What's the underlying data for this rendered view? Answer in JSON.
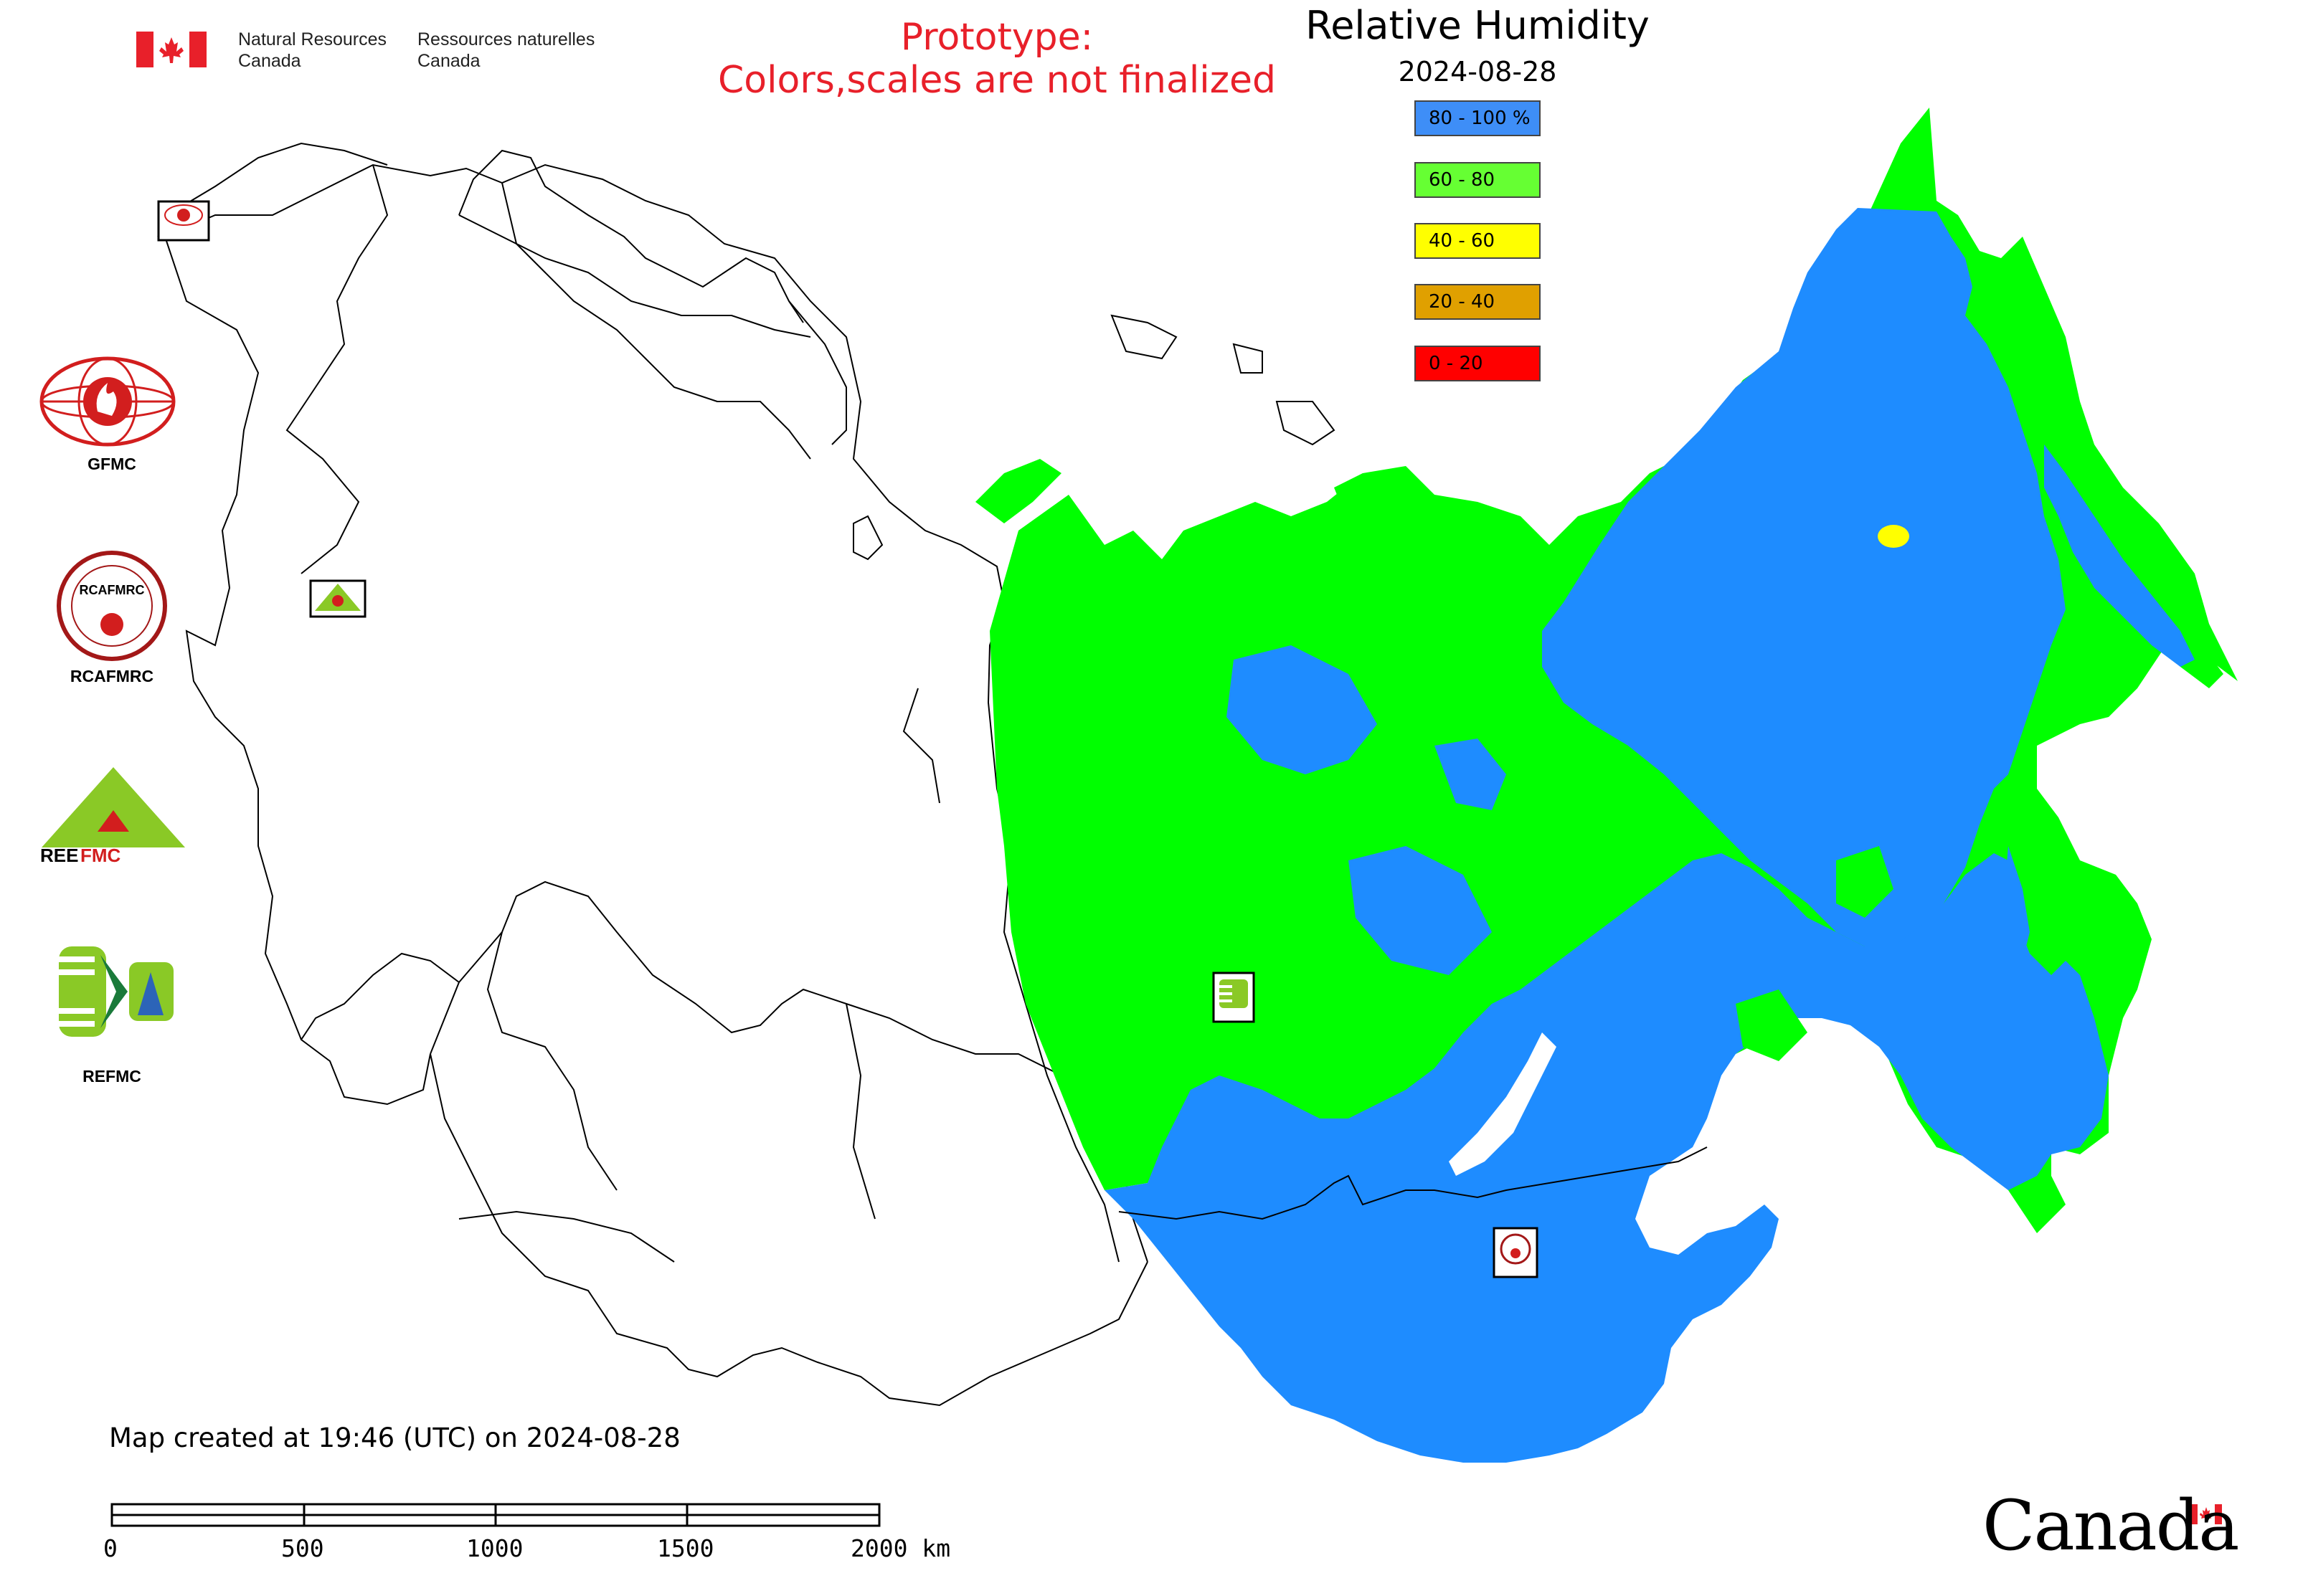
{
  "header": {
    "dept_name_en": "Natural Resources Canada",
    "dept_name_fr": "Ressources naturelles Canada",
    "prototype_line1": "Prototype:",
    "prototype_line2": "Colors,scales are not finalized"
  },
  "map": {
    "title": "Relative Humidity",
    "date": "2024-08-28",
    "created_text": "Map created at 19:46 (UTC) on 2024-08-28",
    "colors": {
      "very_humid": "#1e8cff",
      "humid": "#00ff00",
      "moderate": "#ffff00",
      "dry": "#e0a000",
      "very_dry": "#ff0000",
      "boundary": "#000000"
    }
  },
  "legend": [
    {
      "label": "80 - 100 %",
      "color": "#3e8ef7"
    },
    {
      "label": "60 - 80",
      "color": "#66ff33"
    },
    {
      "label": "40 - 60",
      "color": "#ffff00"
    },
    {
      "label": "20 - 40",
      "color": "#e0a000"
    },
    {
      "label": "0 - 20",
      "color": "#ff0000"
    }
  ],
  "organizations": [
    {
      "label": "GFMC",
      "icon": "gfmc-logo-icon"
    },
    {
      "label": "RCAFMRC",
      "icon": "rcafmrc-logo-icon"
    },
    {
      "label": "",
      "icon": "reefmc-logo-icon",
      "logo_text": "REEFMC"
    },
    {
      "label": "REFMC",
      "icon": "refmc-logo-icon"
    }
  ],
  "scale_bar": {
    "labels": [
      "0",
      "500",
      "1000",
      "1500",
      "2000 km"
    ]
  },
  "footer": {
    "wordmark": "Canada"
  }
}
